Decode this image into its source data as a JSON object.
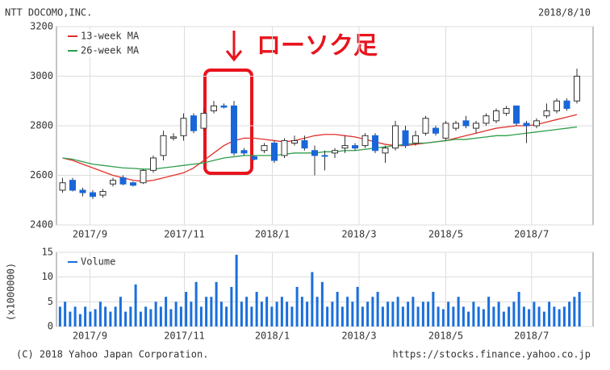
{
  "chart_data": [
    {
      "type": "candlestick",
      "title": "NTT DOCOMO,INC.",
      "date": "2018/8/10",
      "annotation": "ローソク足",
      "xlim": [
        -0.6,
        52.6
      ],
      "xticks": [
        {
          "value": 2.72,
          "label": "2017/9"
        },
        {
          "value": 12.08,
          "label": "2017/11"
        },
        {
          "value": 20.8,
          "label": "2018/1"
        },
        {
          "value": 29.4,
          "label": "2018/3"
        },
        {
          "value": 38,
          "label": "2018/5"
        },
        {
          "value": 46.5,
          "label": "2018/7"
        }
      ],
      "ylim": [
        2400,
        3200
      ],
      "yticks": [
        2400,
        2600,
        2800,
        3000,
        3200
      ],
      "grid": true,
      "legend": "top-left",
      "up_color": "#ffffff",
      "down_color": "#1a66d9",
      "x": [
        0,
        1,
        2,
        3,
        4,
        5,
        6,
        7,
        8,
        9,
        10,
        11,
        12,
        13,
        14,
        15,
        16,
        17,
        18,
        19,
        20,
        21,
        22,
        23,
        24,
        25,
        26,
        27,
        28,
        29,
        30,
        31,
        32,
        33,
        34,
        35,
        36,
        37,
        38,
        39,
        40,
        41,
        42,
        43,
        44,
        45,
        46,
        47,
        48,
        49,
        50,
        51
      ],
      "open": [
        2540,
        2580,
        2540,
        2530,
        2520,
        2565,
        2590,
        2570,
        2570,
        2620,
        2680,
        2750,
        2760,
        2840,
        2790,
        2860,
        2880,
        2880,
        2700,
        2675,
        2700,
        2730,
        2680,
        2730,
        2740,
        2700,
        2680,
        2690,
        2710,
        2720,
        2720,
        2760,
        2690,
        2710,
        2780,
        2730,
        2770,
        2790,
        2750,
        2790,
        2820,
        2790,
        2810,
        2820,
        2850,
        2880,
        2810,
        2800,
        2840,
        2860,
        2900,
        2900
      ],
      "high": [
        2590,
        2590,
        2550,
        2540,
        2545,
        2590,
        2600,
        2575,
        2625,
        2680,
        2780,
        2770,
        2850,
        2850,
        2870,
        2900,
        2890,
        2900,
        2710,
        2680,
        2730,
        2740,
        2750,
        2760,
        2760,
        2720,
        2700,
        2710,
        2760,
        2730,
        2770,
        2770,
        2720,
        2820,
        2800,
        2780,
        2840,
        2800,
        2820,
        2820,
        2840,
        2820,
        2850,
        2870,
        2880,
        2880,
        2820,
        2830,
        2890,
        2910,
        2910,
        3030
      ],
      "low": [
        2530,
        2535,
        2515,
        2505,
        2510,
        2555,
        2560,
        2555,
        2565,
        2610,
        2660,
        2740,
        2740,
        2770,
        2780,
        2850,
        2870,
        2680,
        2680,
        2660,
        2690,
        2650,
        2670,
        2720,
        2700,
        2600,
        2620,
        2670,
        2690,
        2700,
        2710,
        2690,
        2650,
        2700,
        2710,
        2720,
        2760,
        2760,
        2740,
        2780,
        2790,
        2770,
        2800,
        2810,
        2840,
        2800,
        2730,
        2790,
        2830,
        2850,
        2860,
        2890
      ],
      "close": [
        2570,
        2540,
        2530,
        2515,
        2535,
        2580,
        2565,
        2560,
        2620,
        2670,
        2760,
        2755,
        2830,
        2780,
        2850,
        2880,
        2875,
        2690,
        2690,
        2665,
        2720,
        2660,
        2740,
        2740,
        2710,
        2680,
        2678,
        2700,
        2720,
        2710,
        2760,
        2700,
        2710,
        2800,
        2720,
        2760,
        2830,
        2770,
        2810,
        2810,
        2800,
        2810,
        2840,
        2860,
        2870,
        2810,
        2800,
        2820,
        2860,
        2900,
        2870,
        3000
      ],
      "series": [
        {
          "name": "13-week MA",
          "color": "#e0302a",
          "values": [
            2670,
            2660,
            2645,
            2630,
            2615,
            2600,
            2590,
            2580,
            2575,
            2580,
            2590,
            2600,
            2610,
            2630,
            2660,
            2690,
            2720,
            2740,
            2750,
            2750,
            2745,
            2740,
            2735,
            2740,
            2750,
            2760,
            2765,
            2765,
            2760,
            2755,
            2745,
            2735,
            2725,
            2720,
            2720,
            2725,
            2730,
            2735,
            2740,
            2750,
            2760,
            2770,
            2780,
            2790,
            2795,
            2800,
            2800,
            2805,
            2815,
            2825,
            2835,
            2845
          ]
        },
        {
          "name": "26-week MA",
          "color": "#2e9e4a",
          "values": [
            2670,
            2665,
            2655,
            2645,
            2640,
            2635,
            2630,
            2628,
            2625,
            2625,
            2630,
            2635,
            2640,
            2645,
            2650,
            2660,
            2670,
            2675,
            2680,
            2680,
            2680,
            2680,
            2685,
            2690,
            2690,
            2690,
            2695,
            2695,
            2700,
            2700,
            2705,
            2710,
            2715,
            2720,
            2725,
            2730,
            2730,
            2735,
            2740,
            2745,
            2745,
            2750,
            2755,
            2760,
            2760,
            2765,
            2770,
            2775,
            2780,
            2785,
            2790,
            2795
          ]
        }
      ]
    },
    {
      "type": "bar",
      "ylabel": "(x1000000)",
      "legend": "top-left",
      "grid": true,
      "xlim": [
        -0.6,
        52.6
      ],
      "xticks": [
        {
          "value": 2.72,
          "label": "2017/9"
        },
        {
          "value": 12.08,
          "label": "2017/11"
        },
        {
          "value": 20.8,
          "label": "2018/1"
        },
        {
          "value": 29.4,
          "label": "2018/3"
        },
        {
          "value": 38,
          "label": "2018/5"
        },
        {
          "value": 46.5,
          "label": "2018/7"
        }
      ],
      "ylim": [
        0,
        15
      ],
      "yticks": [
        0,
        5,
        10,
        15
      ],
      "x": [
        -0.25,
        0.25,
        0.75,
        1.25,
        1.75,
        2.25,
        2.75,
        3.25,
        3.75,
        4.25,
        4.75,
        5.25,
        5.75,
        6.25,
        6.75,
        7.25,
        7.75,
        8.25,
        8.75,
        9.25,
        9.75,
        10.25,
        10.75,
        11.25,
        11.75,
        12.25,
        12.75,
        13.25,
        13.75,
        14.25,
        14.75,
        15.25,
        15.75,
        16.25,
        16.75,
        17.25,
        17.75,
        18.25,
        18.75,
        19.25,
        19.75,
        20.25,
        20.75,
        21.25,
        21.75,
        22.25,
        22.75,
        23.25,
        23.75,
        24.25,
        24.75,
        25.25,
        25.75,
        26.25,
        26.75,
        27.25,
        27.75,
        28.25,
        28.75,
        29.25,
        29.75,
        30.25,
        30.75,
        31.25,
        31.75,
        32.25,
        32.75,
        33.25,
        33.75,
        34.25,
        34.75,
        35.25,
        35.75,
        36.25,
        36.75,
        37.25,
        37.75,
        38.25,
        38.75,
        39.25,
        39.75,
        40.25,
        40.75,
        41.25,
        41.75,
        42.25,
        42.75,
        43.25,
        43.75,
        44.25,
        44.75,
        45.25,
        45.75,
        46.25,
        46.75,
        47.25,
        47.75,
        48.25,
        48.75,
        49.25,
        49.75,
        50.25,
        50.75,
        51.25
      ],
      "series": [
        {
          "name": "Volume",
          "color": "#1a6fdc",
          "values": [
            4,
            5,
            3,
            4,
            2.5,
            4,
            3,
            3.5,
            5,
            4,
            3,
            4,
            6,
            3,
            4,
            8.5,
            3,
            4,
            3.5,
            5,
            4,
            6,
            3.5,
            5,
            4,
            7,
            5,
            9,
            4,
            6,
            6,
            9,
            5,
            4,
            8,
            14.5,
            5,
            6,
            4,
            7,
            5,
            6,
            4,
            5,
            6,
            5,
            4,
            8,
            6,
            5,
            11,
            6,
            9,
            4,
            5,
            7,
            4,
            6,
            5,
            8,
            4,
            5,
            6,
            7,
            4,
            5,
            5,
            6,
            4,
            5,
            6,
            4,
            5,
            5,
            7,
            4,
            3.5,
            5,
            4,
            6,
            4,
            3,
            5,
            4,
            3.5,
            6,
            4,
            5,
            3,
            4,
            5,
            7,
            4,
            3.5,
            5,
            4,
            3,
            5,
            4,
            3.5,
            4,
            5,
            6,
            7
          ]
        }
      ]
    }
  ],
  "footer": {
    "copyright": "(C) 2018 Yahoo Japan Corporation.",
    "url": "https://stocks.finance.yahoo.co.jp"
  }
}
